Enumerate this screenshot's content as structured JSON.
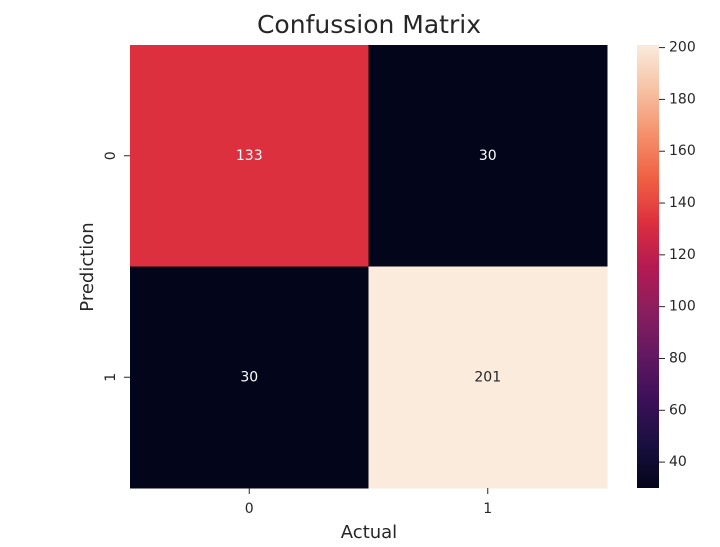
{
  "chart_data": {
    "type": "heatmap",
    "title": "Confussion Matrix",
    "xlabel": "Actual",
    "ylabel": "Prediction",
    "x_categories": [
      "0",
      "1"
    ],
    "y_categories": [
      "0",
      "1"
    ],
    "values": [
      [
        133,
        30
      ],
      [
        30,
        201
      ]
    ],
    "annotations": [
      [
        "133",
        "30"
      ],
      [
        "30",
        "201"
      ]
    ],
    "colormap": "rocket",
    "colorbar": {
      "range": [
        30,
        201
      ],
      "ticks": [
        40,
        60,
        80,
        100,
        120,
        140,
        160,
        180,
        200
      ],
      "tick_labels": [
        "40",
        "60",
        "80",
        "100",
        "120",
        "140",
        "160",
        "180",
        "200"
      ]
    },
    "grid": false
  }
}
